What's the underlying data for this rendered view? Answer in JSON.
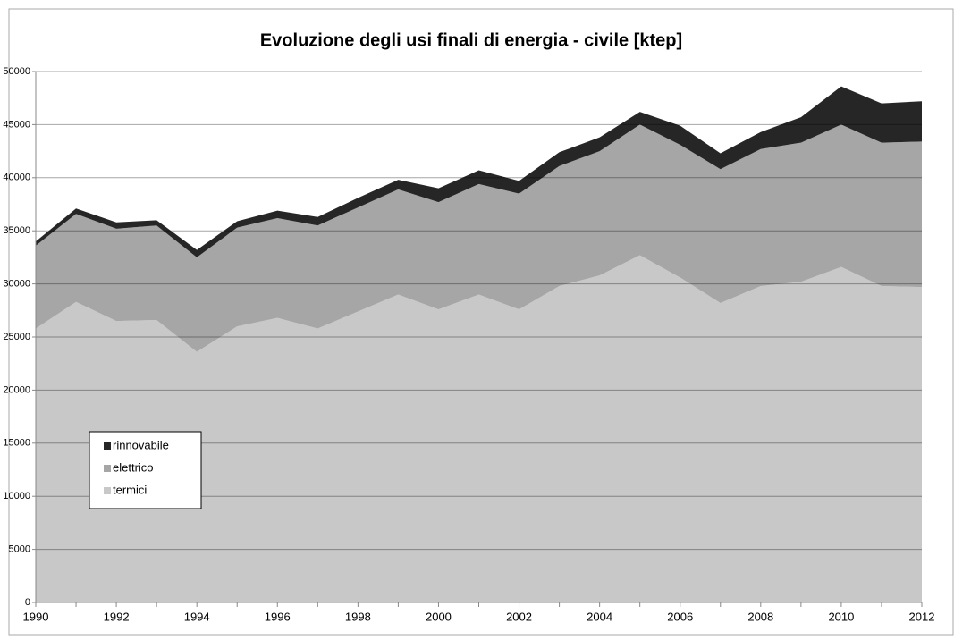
{
  "chart_data": {
    "type": "stacked-area",
    "title": "Evoluzione degli usi finali di energia - civile [ktep]",
    "x": [
      1990,
      1991,
      1992,
      1993,
      1994,
      1995,
      1996,
      1997,
      1998,
      1999,
      2000,
      2001,
      2002,
      2003,
      2004,
      2005,
      2006,
      2007,
      2008,
      2009,
      2010,
      2011,
      2012
    ],
    "series": [
      {
        "name": "termici",
        "color": "#c8c8c8",
        "values": [
          25800,
          28300,
          26500,
          26600,
          23600,
          26000,
          26800,
          25800,
          27400,
          29000,
          27600,
          29000,
          27600,
          29800,
          30800,
          32700,
          30600,
          28200,
          29800,
          30200,
          31600,
          29800,
          29700
        ]
      },
      {
        "name": "elettrico",
        "color": "#a6a6a6",
        "values": [
          7800,
          8300,
          8700,
          8900,
          8900,
          9300,
          9400,
          9700,
          9800,
          9900,
          10100,
          10400,
          10900,
          11300,
          11700,
          12300,
          12500,
          12600,
          12900,
          13100,
          13400,
          13500,
          13700
        ]
      },
      {
        "name": "rinnovabile",
        "color": "#262626",
        "values": [
          400,
          500,
          600,
          500,
          700,
          600,
          700,
          800,
          900,
          900,
          1300,
          1300,
          1200,
          1300,
          1300,
          1200,
          1800,
          1500,
          1600,
          2400,
          3600,
          3700,
          3800
        ]
      }
    ],
    "xlim": [
      1990,
      2012
    ],
    "xticks": [
      1990,
      1992,
      1994,
      1996,
      1998,
      2000,
      2002,
      2004,
      2006,
      2008,
      2010,
      2012
    ],
    "ylim": [
      0,
      50000
    ],
    "yticks": [
      0,
      5000,
      10000,
      15000,
      20000,
      25000,
      30000,
      35000,
      40000,
      45000,
      50000
    ],
    "grid": true,
    "legend": "lower-left"
  }
}
